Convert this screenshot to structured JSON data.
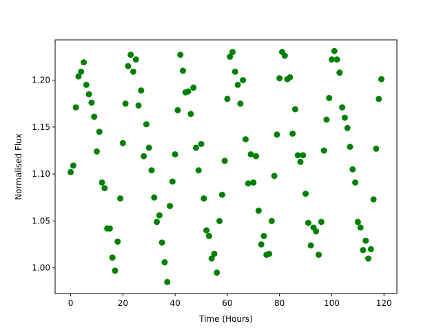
{
  "chart_data": {
    "type": "scatter",
    "xlabel": "Time (Hours)",
    "ylabel": "Normalised Flux",
    "xlim": [
      -5.95,
      124.95
    ],
    "ylim": [
      0.9727,
      1.2429
    ],
    "xticks": [
      0,
      20,
      40,
      60,
      80,
      100,
      120
    ],
    "xtick_labels": [
      "0",
      "20",
      "40",
      "60",
      "80",
      "100",
      "120"
    ],
    "yticks": [
      1.0,
      1.05,
      1.1,
      1.15,
      1.2
    ],
    "ytick_labels": [
      "1.00",
      "1.05",
      "1.10",
      "1.15",
      "1.20"
    ],
    "grid": false,
    "marker_color": "#008000",
    "series": [
      {
        "points": [
          [
            0,
            1.102
          ],
          [
            1,
            1.109
          ],
          [
            2,
            1.171
          ],
          [
            3,
            1.204
          ],
          [
            4,
            1.209
          ],
          [
            5,
            1.219
          ],
          [
            6,
            1.195
          ],
          [
            7,
            1.185
          ],
          [
            8,
            1.176
          ],
          [
            9,
            1.161
          ],
          [
            10,
            1.124
          ],
          [
            11,
            1.145
          ],
          [
            12,
            1.091
          ],
          [
            13,
            1.085
          ],
          [
            14,
            1.042
          ],
          [
            15,
            1.042
          ],
          [
            16,
            1.011
          ],
          [
            17,
            0.997
          ],
          [
            18,
            1.028
          ],
          [
            19,
            1.074
          ],
          [
            20,
            1.133
          ],
          [
            21,
            1.175
          ],
          [
            22,
            1.215
          ],
          [
            23,
            1.227
          ],
          [
            24,
            1.209
          ],
          [
            25,
            1.222
          ],
          [
            26,
            1.173
          ],
          [
            27,
            1.189
          ],
          [
            28,
            1.119
          ],
          [
            29,
            1.153
          ],
          [
            30,
            1.128
          ],
          [
            31,
            1.104
          ],
          [
            32,
            1.075
          ],
          [
            33,
            1.049
          ],
          [
            34,
            1.056
          ],
          [
            35,
            1.027
          ],
          [
            36,
            1.006
          ],
          [
            37,
            0.985
          ],
          [
            38,
            1.066
          ],
          [
            39,
            1.092
          ],
          [
            40,
            1.121
          ],
          [
            41,
            1.168
          ],
          [
            42,
            1.227
          ],
          [
            43,
            1.21
          ],
          [
            44,
            1.187
          ],
          [
            45,
            1.188
          ],
          [
            46,
            1.164
          ],
          [
            47,
            1.192
          ],
          [
            48,
            1.128
          ],
          [
            49,
            1.104
          ],
          [
            50,
            1.132
          ],
          [
            51,
            1.074
          ],
          [
            52,
            1.04
          ],
          [
            53,
            1.034
          ],
          [
            54,
            1.01
          ],
          [
            55,
            1.015
          ],
          [
            56,
            0.995
          ],
          [
            57,
            1.05
          ],
          [
            58,
            1.078
          ],
          [
            59,
            1.114
          ],
          [
            60,
            1.18
          ],
          [
            61,
            1.225
          ],
          [
            62,
            1.23
          ],
          [
            63,
            1.209
          ],
          [
            64,
            1.195
          ],
          [
            65,
            1.175
          ],
          [
            66,
            1.2
          ],
          [
            67,
            1.137
          ],
          [
            68,
            1.09
          ],
          [
            69,
            1.121
          ],
          [
            70,
            1.091
          ],
          [
            71,
            1.119
          ],
          [
            72,
            1.061
          ],
          [
            73,
            1.025
          ],
          [
            74,
            1.034
          ],
          [
            75,
            1.014
          ],
          [
            76,
            1.015
          ],
          [
            77,
            1.05
          ],
          [
            78,
            1.098
          ],
          [
            79,
            1.142
          ],
          [
            80,
            1.202
          ],
          [
            81,
            1.23
          ],
          [
            82,
            1.226
          ],
          [
            83,
            1.201
          ],
          [
            84,
            1.203
          ],
          [
            85,
            1.143
          ],
          [
            86,
            1.169
          ],
          [
            87,
            1.12
          ],
          [
            88,
            1.113
          ],
          [
            89,
            1.12
          ],
          [
            90,
            1.079
          ],
          [
            91,
            1.048
          ],
          [
            92,
            1.024
          ],
          [
            93,
            1.043
          ],
          [
            94,
            1.039
          ],
          [
            95,
            1.014
          ],
          [
            96,
            1.049
          ],
          [
            97,
            1.125
          ],
          [
            98,
            1.158
          ],
          [
            99,
            1.181
          ],
          [
            100,
            1.222
          ],
          [
            101,
            1.231
          ],
          [
            102,
            1.222
          ],
          [
            103,
            1.208
          ],
          [
            104,
            1.171
          ],
          [
            105,
            1.16
          ],
          [
            106,
            1.149
          ],
          [
            107,
            1.129
          ],
          [
            108,
            1.105
          ],
          [
            109,
            1.091
          ],
          [
            110,
            1.049
          ],
          [
            111,
            1.043
          ],
          [
            112,
            1.019
          ],
          [
            113,
            1.029
          ],
          [
            114,
            1.01
          ],
          [
            115,
            1.02
          ],
          [
            116,
            1.073
          ],
          [
            117,
            1.127
          ],
          [
            118,
            1.18
          ],
          [
            119,
            1.201
          ]
        ]
      }
    ]
  }
}
